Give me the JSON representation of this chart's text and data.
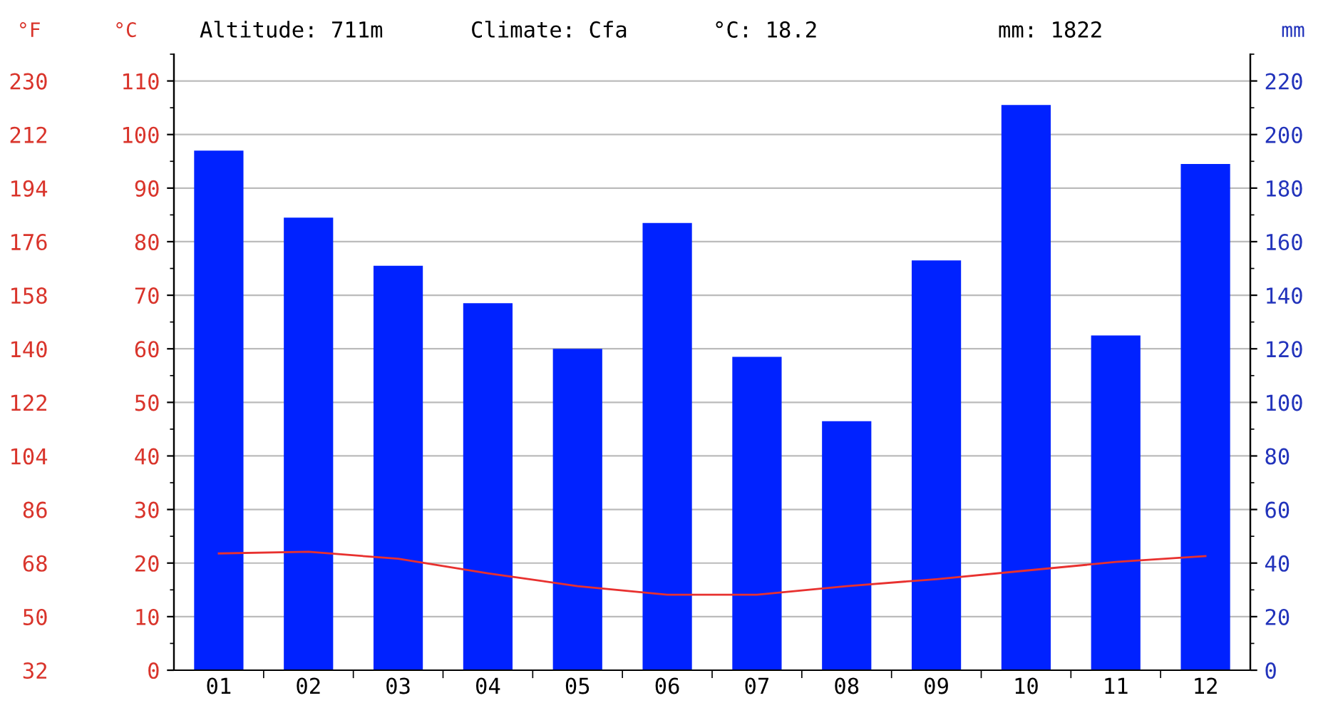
{
  "chart_data": {
    "type": "bar",
    "annotations": [
      "Altitude: 711m",
      "Climate: Cfa",
      "°C: 18.2",
      "mm: 1822"
    ],
    "categories": [
      "01",
      "02",
      "03",
      "04",
      "05",
      "06",
      "07",
      "08",
      "09",
      "10",
      "11",
      "12"
    ],
    "series": [
      {
        "name": null,
        "axis": "y2",
        "color": "#0022ff",
        "values": [
          194,
          169,
          151,
          137,
          120,
          167,
          117,
          93,
          153,
          211,
          125,
          189
        ]
      },
      {
        "name": null,
        "type": "line",
        "axis": "y",
        "color": "#e8312f",
        "values": [
          21.8,
          22.1,
          20.8,
          18.1,
          15.7,
          14.1,
          14.1,
          15.7,
          17.0,
          18.6,
          20.2,
          21.3
        ]
      }
    ],
    "ylabel": "°C",
    "y2label": "mm",
    "y3label": "°F",
    "ylim": [
      0,
      115
    ],
    "yticks": [
      0,
      10,
      20,
      30,
      40,
      50,
      60,
      70,
      80,
      90,
      100,
      110
    ],
    "y2lim": [
      0,
      230
    ],
    "y2ticks": [
      0,
      20,
      40,
      60,
      80,
      100,
      120,
      140,
      160,
      180,
      200,
      220
    ],
    "y3lim": [
      32,
      239
    ],
    "y3ticks": [
      32,
      50,
      68,
      86,
      104,
      122,
      140,
      158,
      176,
      194,
      212,
      230
    ],
    "grid": "y",
    "line_style": "solid",
    "marker": "none"
  }
}
